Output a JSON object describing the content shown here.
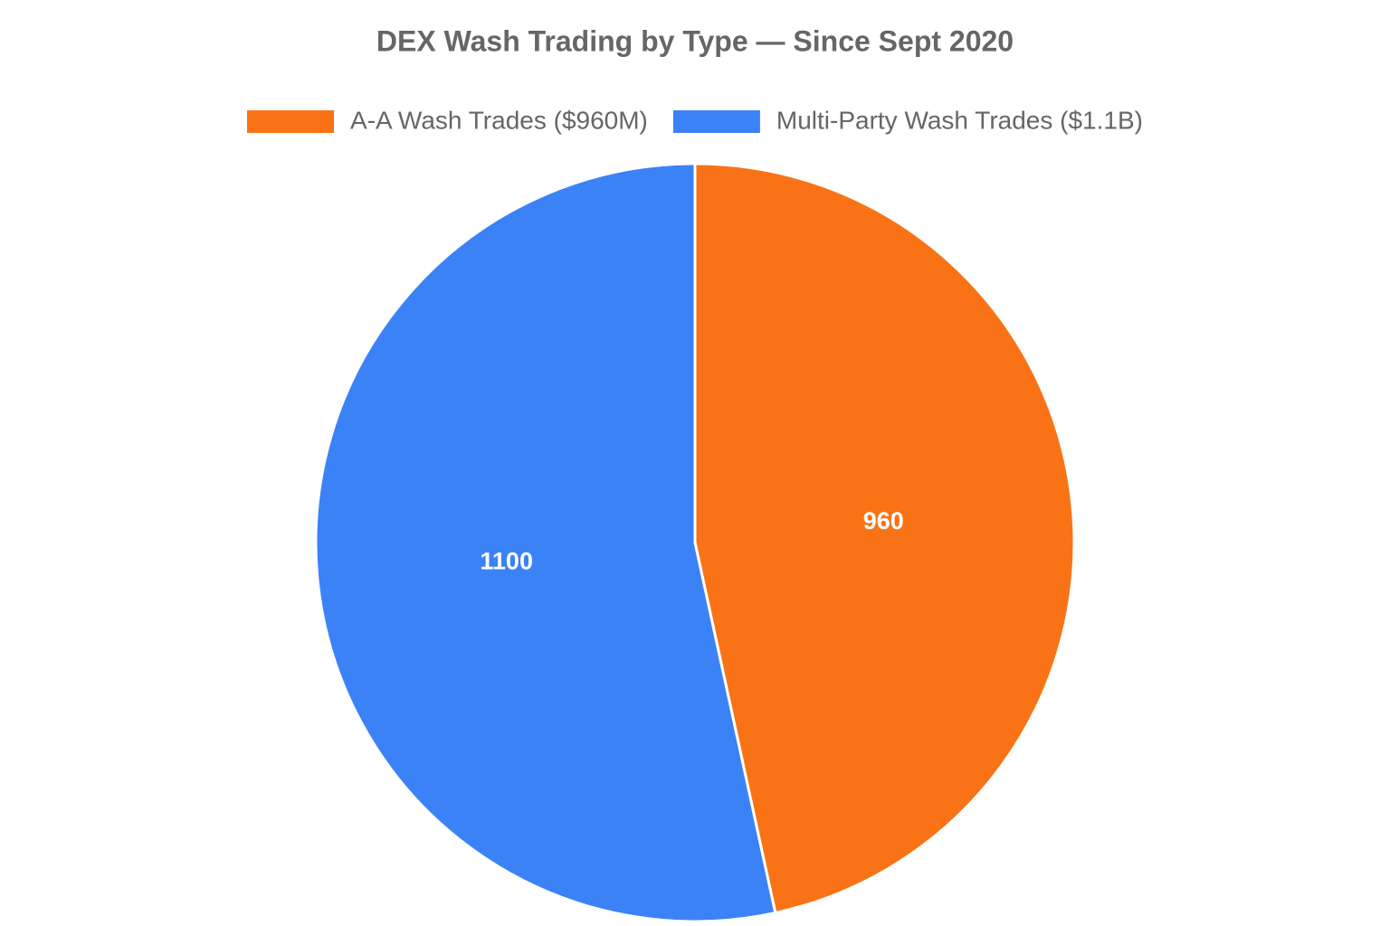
{
  "chart_data": {
    "type": "pie",
    "title": "DEX Wash Trading by Type — Since Sept 2020",
    "categories": [
      "A-A Wash Trades ($960M)",
      "Multi-Party Wash Trades ($1.1B)"
    ],
    "values": [
      960,
      1100
    ],
    "colors": [
      "#f97316",
      "#3b82f6"
    ],
    "legend": "top"
  }
}
